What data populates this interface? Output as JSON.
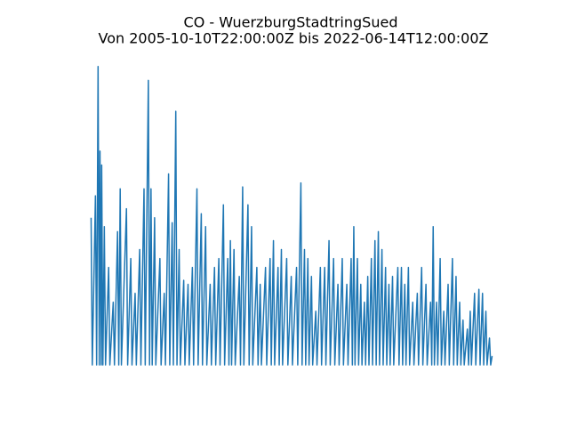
{
  "chart_data": {
    "type": "line",
    "title": "CO - WuerzburgStadtringSued",
    "subtitle": "Von 2005-10-10T22:00:00Z bis 2022-06-14T12:00:00Z",
    "color": "#1f77b4",
    "xlim": [
      2004.95,
      2023.28
    ],
    "ylim": [
      -0.15,
      3.15
    ],
    "x": [
      2005.78,
      2005.83,
      2005.96,
      2006.01,
      2006.07,
      2006.12,
      2006.15,
      2006.2,
      2006.22,
      2006.27,
      2006.33,
      2006.38,
      2006.51,
      2006.56,
      2006.7,
      2006.75,
      2006.88,
      2006.93,
      2006.99,
      2007.04,
      2007.25,
      2007.3,
      2007.43,
      2007.48,
      2007.61,
      2007.66,
      2007.8,
      2007.85,
      2007.98,
      2008.03,
      2008.16,
      2008.21,
      2008.27,
      2008.32,
      2008.42,
      2008.47,
      2008.64,
      2008.69,
      2008.82,
      2008.87,
      2009.0,
      2009.05,
      2009.15,
      2009.2,
      2009.3,
      2009.35,
      2009.44,
      2009.49,
      2009.63,
      2009.68,
      2009.81,
      2009.86,
      2009.99,
      2010.04,
      2010.18,
      2010.23,
      2010.36,
      2010.41,
      2010.54,
      2010.59,
      2010.73,
      2010.78,
      2010.91,
      2010.96,
      2011.09,
      2011.14,
      2011.28,
      2011.33,
      2011.46,
      2011.51,
      2011.57,
      2011.62,
      2011.72,
      2011.77,
      2011.94,
      2011.99,
      2012.08,
      2012.13,
      2012.3,
      2012.35,
      2012.45,
      2012.5,
      2012.67,
      2012.72,
      2012.81,
      2012.86,
      2013.03,
      2013.08,
      2013.22,
      2013.27,
      2013.36,
      2013.41,
      2013.55,
      2013.6,
      2013.69,
      2013.74,
      2013.91,
      2013.96,
      2014.1,
      2014.15,
      2014.32,
      2014.37,
      2014.5,
      2014.55,
      2014.65,
      2014.7,
      2014.79,
      2014.84,
      2014.94,
      2014.99,
      2015.12,
      2015.17,
      2015.31,
      2015.36,
      2015.49,
      2015.54,
      2015.67,
      2015.72,
      2015.86,
      2015.91,
      2016.04,
      2016.09,
      2016.22,
      2016.27,
      2016.41,
      2016.46,
      2016.59,
      2016.64,
      2016.7,
      2016.75,
      2016.85,
      2016.9,
      2016.99,
      2017.04,
      2017.14,
      2017.19,
      2017.28,
      2017.33,
      2017.43,
      2017.48,
      2017.58,
      2017.63,
      2017.72,
      2017.77,
      2017.87,
      2017.92,
      2018.02,
      2018.07,
      2018.16,
      2018.21,
      2018.31,
      2018.36,
      2018.53,
      2018.58,
      2018.68,
      2018.73,
      2018.82,
      2018.87,
      2018.97,
      2019.02,
      2019.15,
      2019.2,
      2019.34,
      2019.39,
      2019.52,
      2019.57,
      2019.7,
      2019.75,
      2019.89,
      2019.94,
      2020.0,
      2020.05,
      2020.14,
      2020.19,
      2020.29,
      2020.34,
      2020.44,
      2020.49,
      2020.62,
      2020.67,
      2020.8,
      2020.85,
      2020.95,
      2021.0,
      2021.1,
      2021.15,
      2021.24,
      2021.29,
      2021.42,
      2021.47,
      2021.54,
      2021.59,
      2021.72,
      2021.77,
      2021.9,
      2021.95,
      2022.05,
      2022.1,
      2022.19,
      2022.24,
      2022.34,
      2022.39,
      2022.45
    ],
    "values": [
      1.48,
      0,
      1.7,
      0,
      3.0,
      0,
      2.15,
      0,
      2.01,
      0,
      1.39,
      0,
      0.98,
      0,
      0.63,
      0,
      1.34,
      0,
      1.77,
      0,
      1.57,
      0,
      1.07,
      0,
      0.72,
      0,
      1.16,
      0,
      1.77,
      0,
      2.86,
      0,
      1.77,
      0,
      1.48,
      0,
      1.07,
      0,
      0.72,
      0,
      1.92,
      0,
      1.43,
      0,
      2.55,
      0,
      1.16,
      0,
      0.85,
      0,
      0.81,
      0,
      0.98,
      0,
      1.77,
      0,
      1.52,
      0,
      1.39,
      0,
      0.81,
      0,
      0.98,
      0,
      1.07,
      0,
      1.61,
      0,
      1.07,
      0,
      1.25,
      0,
      1.16,
      0,
      0.89,
      0,
      1.79,
      0,
      1.61,
      0,
      1.39,
      0,
      0.98,
      0,
      0.81,
      0,
      0.98,
      0,
      1.07,
      0,
      1.25,
      0,
      0.98,
      0,
      1.16,
      0,
      1.07,
      0,
      0.89,
      0,
      0.98,
      0,
      1.83,
      0,
      1.16,
      0,
      1.07,
      0,
      0.89,
      0,
      0.54,
      0,
      0.98,
      0,
      0.98,
      0,
      1.25,
      0,
      1.07,
      0,
      0.81,
      0,
      1.07,
      0,
      0.81,
      0,
      1.07,
      0,
      1.39,
      0,
      1.07,
      0,
      0.81,
      0,
      0.63,
      0,
      0.89,
      0,
      1.07,
      0,
      1.25,
      0,
      1.34,
      0,
      1.16,
      0,
      0.98,
      0,
      0.81,
      0,
      0.89,
      0,
      0.98,
      0,
      0.98,
      0,
      0.81,
      0,
      0.98,
      0,
      0.63,
      0,
      0.72,
      0,
      0.98,
      0,
      0.81,
      0,
      0.63,
      0,
      1.39,
      0,
      0.63,
      0,
      1.07,
      0,
      0.54,
      0,
      0.81,
      0,
      1.07,
      0,
      0.89,
      0,
      0.63,
      0,
      0.45,
      0,
      0.36,
      0,
      0.54,
      0,
      0.72,
      0,
      0.76,
      0,
      0.72,
      0,
      0.54,
      0,
      0.27,
      0,
      0.09
    ]
  }
}
